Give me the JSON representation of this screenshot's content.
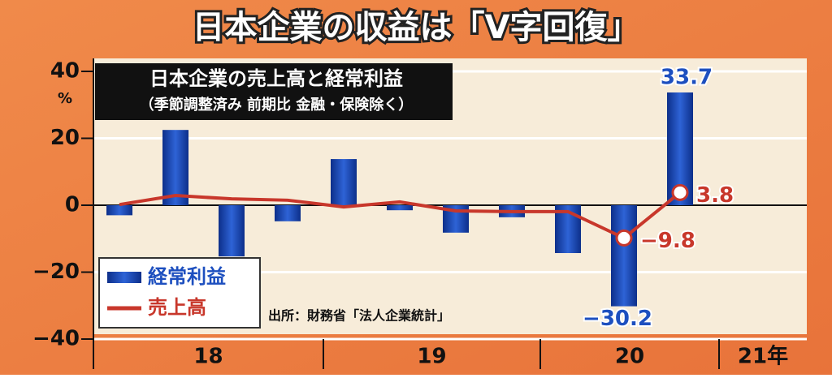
{
  "chart_data": {
    "type": "bar_line",
    "title": "日本企業の収益は「V字回復」",
    "chart_title": "日本企業の売上高と経常利益",
    "subtitle": "（季節調整済み 前期比 金融・保険除く）",
    "y_unit": "%",
    "source": "出所：財務省「法人企業統計」",
    "categories": [
      null,
      null,
      null,
      null,
      null,
      null,
      null,
      null,
      null,
      null,
      null
    ],
    "x_group_labels": [
      "18",
      "19",
      "20",
      "21年"
    ],
    "series": [
      {
        "name": "経常利益",
        "type": "bar",
        "color": "#1d4fbf",
        "values": [
          -3,
          22.5,
          -15.3,
          -4.8,
          13.8,
          -1.5,
          -8.2,
          -3.6,
          -14.3,
          -30.2,
          33.7
        ],
        "value_labels": [
          null,
          null,
          null,
          null,
          null,
          null,
          null,
          null,
          null,
          "−30.2",
          "33.7"
        ]
      },
      {
        "name": "売上高",
        "type": "line",
        "color": "#c8372b",
        "values": [
          0.2,
          2.9,
          1.9,
          1.5,
          -0.5,
          1.0,
          -1.7,
          -1.9,
          -1.9,
          -9.8,
          3.8
        ],
        "value_labels": [
          null,
          null,
          null,
          null,
          null,
          null,
          null,
          null,
          null,
          "−9.8",
          "3.8"
        ]
      }
    ],
    "ylim": [
      -40,
      40
    ],
    "yticks": [
      {
        "value": -40,
        "label": "−40"
      },
      {
        "value": -20,
        "label": "−20"
      },
      0,
      20,
      40
    ],
    "grid": true
  }
}
